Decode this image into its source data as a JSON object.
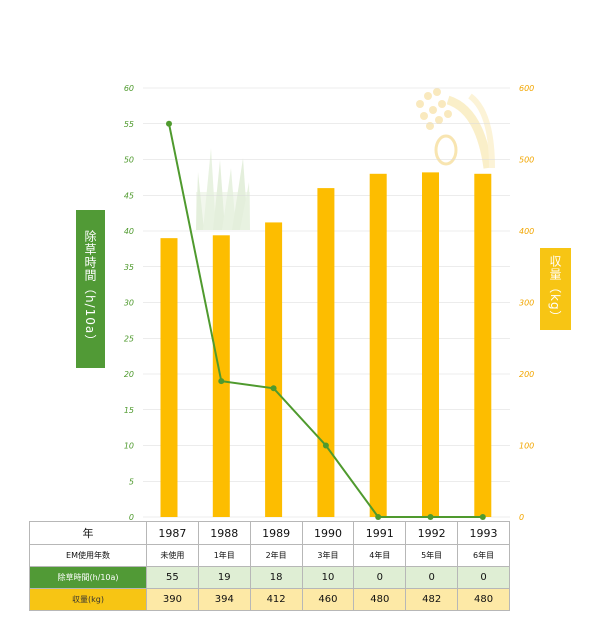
{
  "chart_data": {
    "type": "bar+line",
    "categories": [
      "1987",
      "1988",
      "1989",
      "1990",
      "1991",
      "1992",
      "1993"
    ],
    "series": [
      {
        "name": "除草時間（h/10a）",
        "type": "line",
        "axis": "left",
        "color": "#4f9a2e",
        "values": [
          55,
          19,
          18,
          10,
          0,
          0,
          0
        ]
      },
      {
        "name": "収量（kg）",
        "type": "bar",
        "axis": "right",
        "color": "#fdbd00",
        "values": [
          390,
          394,
          412,
          460,
          480,
          482,
          480
        ]
      }
    ],
    "left_axis": {
      "label": "除草時間（h/10a）",
      "min": 0,
      "max": 60,
      "step": 5,
      "ticks": [
        "0",
        "5",
        "10",
        "15",
        "20",
        "25",
        "30",
        "35",
        "40",
        "45",
        "50",
        "55",
        "60"
      ]
    },
    "right_axis": {
      "label": "収量（kg）",
      "min": 0,
      "max": 600,
      "step": 100,
      "ticks": [
        "0",
        "100",
        "200",
        "300",
        "400",
        "500",
        "600"
      ]
    },
    "grid": true
  },
  "table": {
    "header": {
      "label": "年",
      "values": [
        "1987",
        "1988",
        "1989",
        "1990",
        "1991",
        "1992",
        "1993"
      ]
    },
    "em_years": {
      "label": "EM使用年数",
      "values": [
        "未使用",
        "1年目",
        "2年目",
        "3年目",
        "4年目",
        "5年目",
        "6年目"
      ]
    },
    "weeding": {
      "label": "除草時間(h/10a)",
      "values": [
        "55",
        "19",
        "18",
        "10",
        "0",
        "0",
        "0"
      ]
    },
    "yield": {
      "label": "収量(kg)",
      "values": [
        "390",
        "394",
        "412",
        "460",
        "480",
        "482",
        "480"
      ]
    }
  },
  "colors": {
    "green": "#519a36",
    "yellow": "#f7c514",
    "bar": "#fdbd00"
  },
  "icons": [
    "grass-icon",
    "rice-plant-icon"
  ]
}
